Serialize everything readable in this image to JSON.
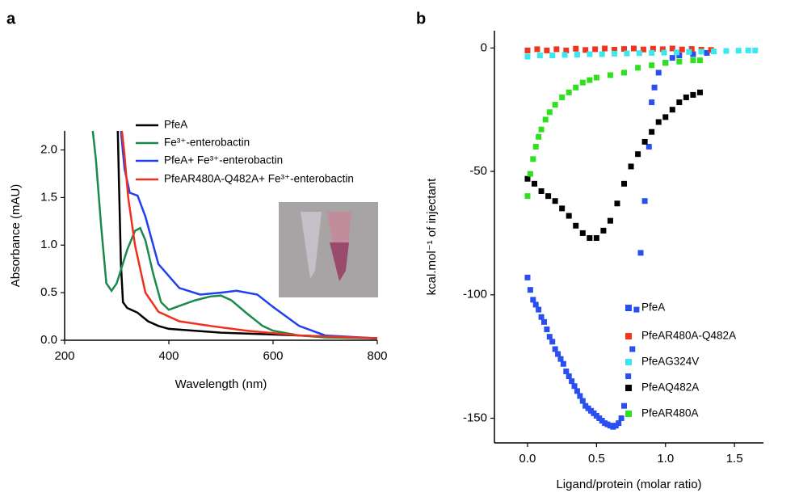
{
  "chart_data": [
    {
      "type": "line",
      "panel": "a",
      "xlabel": "Wavelength (nm)",
      "ylabel": "Absorbance (mAU)",
      "xlim": [
        200,
        800
      ],
      "ylim": [
        0,
        2.2
      ],
      "xticks": [
        200,
        400,
        600,
        800
      ],
      "yticks": [
        {
          "value": 0,
          "label": "0.0"
        },
        0.5,
        {
          "value": 1,
          "label": "1.0"
        },
        1.5,
        {
          "value": 2,
          "label": "2.0"
        }
      ],
      "series": [
        {
          "name": "PfeA",
          "color": "#000000",
          "x": [
            302,
            305,
            308,
            312,
            320,
            340,
            360,
            380,
            400,
            450,
            500,
            600,
            700,
            800
          ],
          "values": [
            2.2,
            1.5,
            0.8,
            0.4,
            0.34,
            0.29,
            0.2,
            0.15,
            0.12,
            0.1,
            0.08,
            0.06,
            0.04,
            0.02
          ]
        },
        {
          "name": "Fe³⁺-enterobactin",
          "color": "#1a8a4a",
          "x": [
            254,
            260,
            270,
            280,
            290,
            300,
            320,
            335,
            345,
            355,
            370,
            385,
            400,
            420,
            450,
            480,
            500,
            520,
            550,
            580,
            600,
            650,
            700,
            800
          ],
          "values": [
            2.2,
            1.9,
            1.2,
            0.6,
            0.52,
            0.6,
            0.95,
            1.15,
            1.18,
            1.05,
            0.7,
            0.4,
            0.32,
            0.36,
            0.42,
            0.46,
            0.47,
            0.42,
            0.28,
            0.15,
            0.1,
            0.05,
            0.03,
            0.02
          ]
        },
        {
          "name": "PfeA+ Fe³⁺-enterobactin",
          "color": "#1f3ff0",
          "x": [
            308,
            315,
            325,
            340,
            355,
            380,
            420,
            460,
            500,
            530,
            570,
            600,
            650,
            700,
            800
          ],
          "values": [
            2.2,
            1.8,
            1.55,
            1.52,
            1.3,
            0.8,
            0.55,
            0.48,
            0.5,
            0.52,
            0.48,
            0.35,
            0.15,
            0.05,
            0.02
          ]
        },
        {
          "name": "PfeAR480A-Q482A+ Fe³⁺-enterobactin",
          "color": "#f0301e",
          "x": [
            310,
            314,
            322,
            335,
            355,
            380,
            420,
            480,
            550,
            650,
            800
          ],
          "values": [
            2.2,
            2.0,
            1.5,
            1.0,
            0.5,
            0.3,
            0.2,
            0.15,
            0.1,
            0.05,
            0.02
          ]
        }
      ]
    },
    {
      "type": "scatter",
      "panel": "b",
      "xlabel": "Ligand/protein (molar ratio)",
      "ylabel": "kcal.mol⁻¹ of injectant",
      "xlim": [
        -0.24,
        1.71
      ],
      "ylim": [
        -160,
        7
      ],
      "xticks": [
        {
          "value": 0,
          "label": "0.0"
        },
        0.5,
        {
          "value": 1,
          "label": "1.0"
        },
        1.5
      ],
      "yticks": [
        0,
        -50,
        -100,
        -150
      ],
      "series": [
        {
          "name": "PfeA",
          "color": "#2a4ff0",
          "x": [
            0,
            0.02,
            0.04,
            0.06,
            0.08,
            0.1,
            0.12,
            0.14,
            0.16,
            0.18,
            0.2,
            0.22,
            0.24,
            0.26,
            0.28,
            0.3,
            0.32,
            0.34,
            0.36,
            0.38,
            0.4,
            0.42,
            0.44,
            0.46,
            0.48,
            0.5,
            0.52,
            0.54,
            0.56,
            0.58,
            0.6,
            0.62,
            0.64,
            0.66,
            0.68,
            0.7,
            0.73,
            0.76,
            0.79,
            0.82,
            0.85,
            0.88,
            0.9,
            0.92,
            0.95,
            1.0,
            1.05,
            1.1,
            1.2,
            1.3
          ],
          "values": [
            -93,
            -98,
            -102,
            -104,
            -106,
            -109,
            -111,
            -114,
            -117,
            -119,
            -122,
            -124,
            -126,
            -128,
            -131,
            -133,
            -135,
            -137,
            -139,
            -141,
            -143,
            -145,
            -146,
            -147,
            -148,
            -149,
            -150,
            -151,
            -152,
            -152.5,
            -153,
            -153.5,
            -153,
            -152,
            -150,
            -145,
            -133,
            -122,
            -106,
            -83,
            -62,
            -40,
            -22,
            -16,
            -10,
            -6,
            -4,
            -3,
            -2.5,
            -2
          ]
        },
        {
          "name": "PfeAR480A-Q482A",
          "color": "#f0341e",
          "x": [
            0,
            0.07,
            0.14,
            0.21,
            0.28,
            0.35,
            0.42,
            0.49,
            0.56,
            0.63,
            0.7,
            0.77,
            0.84,
            0.91,
            0.98,
            1.05,
            1.12,
            1.19,
            1.26,
            1.33
          ],
          "values": [
            -1,
            -0.5,
            -1,
            -0.5,
            -1,
            -0.3,
            -0.8,
            -0.5,
            -0.2,
            -0.7,
            -0.4,
            -0.2,
            -0.6,
            -0.3,
            -0.5,
            -0.2,
            -0.6,
            -0.4,
            -0.7,
            -0.8
          ]
        },
        {
          "name": "PfeAG324V",
          "color": "#3ae8f0",
          "x": [
            0,
            0.09,
            0.18,
            0.27,
            0.36,
            0.45,
            0.54,
            0.63,
            0.72,
            0.81,
            0.9,
            0.99,
            1.08,
            1.17,
            1.26,
            1.35,
            1.44,
            1.53,
            1.6,
            1.65
          ],
          "values": [
            -3.5,
            -3,
            -3,
            -2.8,
            -2.7,
            -2.5,
            -2.5,
            -2.3,
            -2.2,
            -2.1,
            -2,
            -1.9,
            -1.8,
            -1.6,
            -1.5,
            -1.4,
            -1.2,
            -1.1,
            -1,
            -1
          ]
        },
        {
          "name": "PfeAQ482A",
          "color": "#000000",
          "x": [
            0,
            0.05,
            0.1,
            0.15,
            0.2,
            0.25,
            0.3,
            0.35,
            0.4,
            0.45,
            0.5,
            0.55,
            0.6,
            0.65,
            0.7,
            0.75,
            0.8,
            0.85,
            0.9,
            0.95,
            1.0,
            1.05,
            1.1,
            1.15,
            1.2,
            1.25
          ],
          "values": [
            -53,
            -55,
            -58,
            -60,
            -62,
            -65,
            -68,
            -72,
            -75,
            -77,
            -77,
            -74,
            -70,
            -63,
            -55,
            -48,
            -43,
            -38,
            -34,
            -30,
            -28,
            -25,
            -22,
            -20,
            -19,
            -18
          ]
        },
        {
          "name": "PfeAR480A",
          "color": "#2ee01e",
          "x": [
            0,
            0.02,
            0.04,
            0.06,
            0.08,
            0.1,
            0.13,
            0.16,
            0.2,
            0.25,
            0.3,
            0.35,
            0.4,
            0.45,
            0.5,
            0.6,
            0.7,
            0.8,
            0.9,
            1.0,
            1.1,
            1.2,
            1.25
          ],
          "values": [
            -60,
            -51,
            -45,
            -40,
            -36,
            -33,
            -29,
            -26,
            -23,
            -20,
            -18,
            -16,
            -14,
            -13,
            -12,
            -11,
            -10,
            -8,
            -7,
            -6,
            -5.5,
            -5,
            -5
          ]
        }
      ]
    }
  ]
}
